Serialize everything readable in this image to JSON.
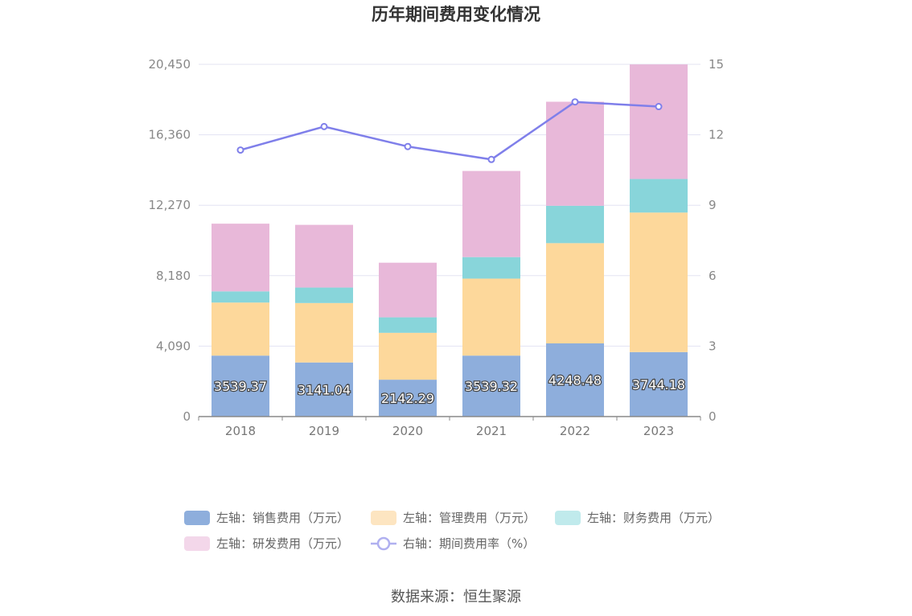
{
  "title": "历年期间费用变化情况",
  "source": "数据来源：恒生聚源",
  "colors": {
    "sales": "#8eaedc",
    "admin": "#fdd89b",
    "finance": "#88d5da",
    "rd": "#e8b8d9",
    "rate": "#7f7fea"
  },
  "legend": [
    {
      "label": "左轴：销售费用（万元）",
      "color": "#8eaedc"
    },
    {
      "label": "左轴：管理费用（万元）",
      "color": "#fde5c1"
    },
    {
      "label": "左轴：财务费用（万元）",
      "color": "#c0eaec"
    },
    {
      "label": "左轴：研发费用（万元）",
      "color": "#f3d7ea"
    },
    {
      "label": "右轴：期间费用率（%）",
      "color": "#b0b0f0"
    }
  ],
  "chart_data": {
    "type": "bar",
    "stacked": true,
    "categories": [
      "2018",
      "2019",
      "2020",
      "2021",
      "2022",
      "2023"
    ],
    "series": [
      {
        "name": "左轴：销售费用（万元）",
        "axis": "left",
        "values": [
          3539.37,
          3141.04,
          2142.29,
          3539.32,
          4248.48,
          3744.18
        ],
        "show_labels": true
      },
      {
        "name": "左轴：管理费用（万元）",
        "axis": "left",
        "values": [
          3080,
          3450,
          2720,
          4470,
          5820,
          8100
        ],
        "show_labels": false
      },
      {
        "name": "左轴：财务费用（万元）",
        "axis": "left",
        "values": [
          650,
          900,
          900,
          1250,
          2170,
          1950
        ],
        "show_labels": false
      },
      {
        "name": "左轴：研发费用（万元）",
        "axis": "left",
        "values": [
          3930,
          3640,
          3170,
          5000,
          6040,
          6650
        ],
        "show_labels": false
      },
      {
        "name": "右轴：期间费用率（%）",
        "axis": "right",
        "type": "line",
        "values": [
          11.35,
          12.35,
          11.5,
          10.95,
          13.4,
          13.2
        ]
      }
    ],
    "left_axis": {
      "min": 0,
      "max": 20450,
      "ticks": [
        "0",
        "4,090",
        "8,180",
        "12,270",
        "16,360",
        "20,450"
      ]
    },
    "right_axis": {
      "min": 0,
      "max": 15,
      "ticks": [
        "0",
        "3",
        "6",
        "9",
        "12",
        "15"
      ]
    },
    "grid": true,
    "legend_position": "bottom"
  }
}
